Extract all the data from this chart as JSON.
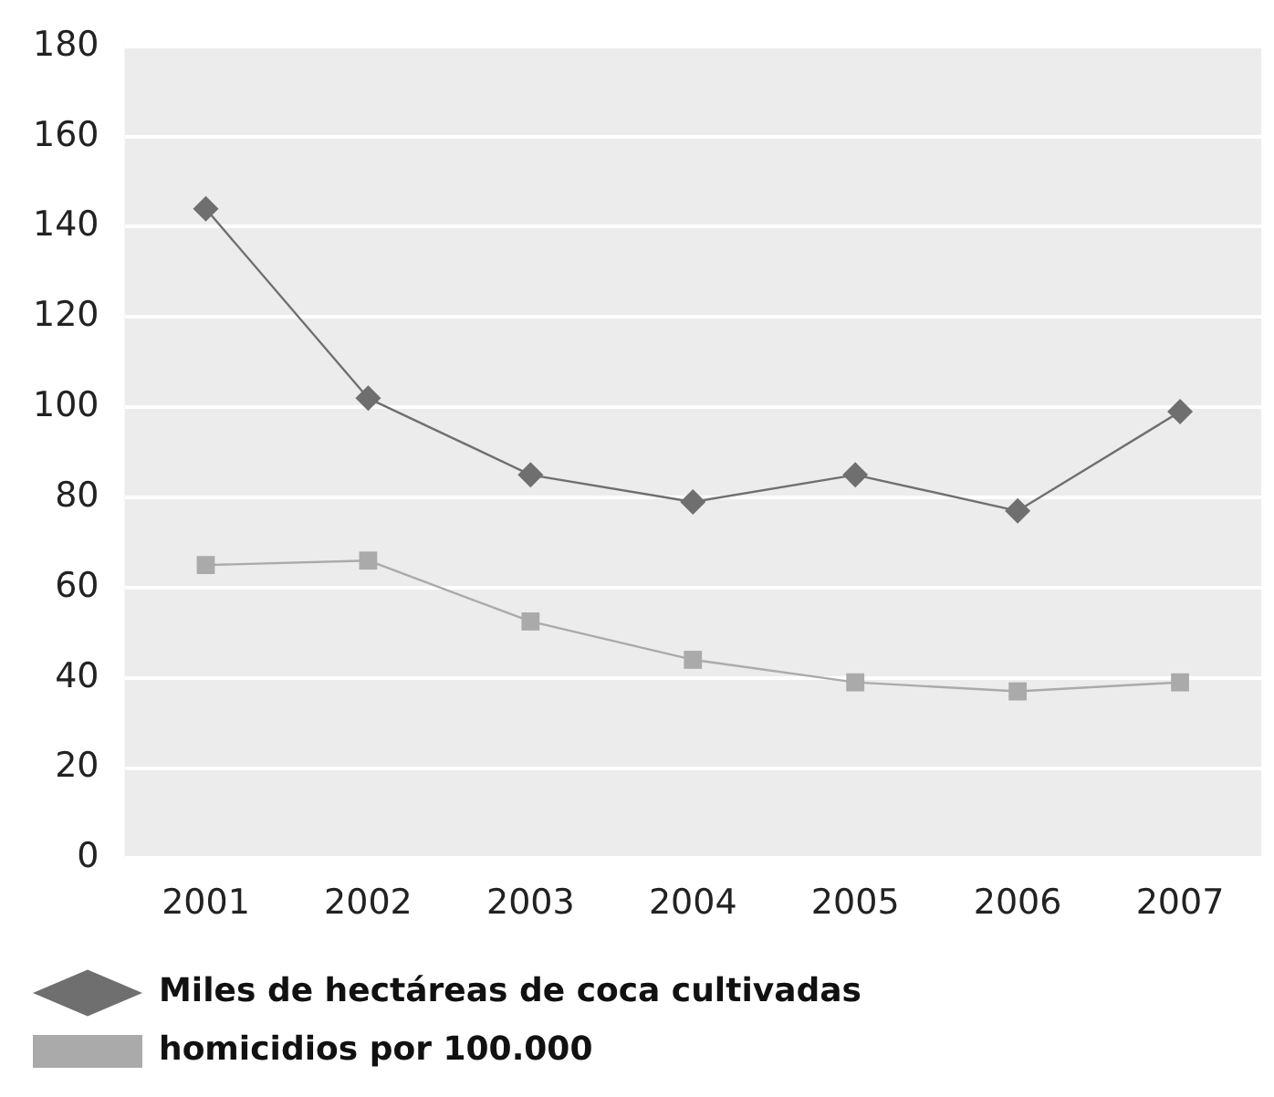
{
  "chart_data": {
    "type": "line",
    "categories": [
      "2001",
      "2002",
      "2003",
      "2004",
      "2005",
      "2006",
      "2007"
    ],
    "series": [
      {
        "name": "Miles de hectáreas de coca cultivadas",
        "color": "#6f6f6f",
        "marker": "diamond",
        "values": [
          144,
          102,
          85,
          79,
          85,
          77,
          99
        ]
      },
      {
        "name": "homicidios por 100.000",
        "color": "#aaaaaa",
        "marker": "square",
        "values": [
          65,
          66,
          52.5,
          44,
          39,
          37,
          39
        ]
      }
    ],
    "ylim": [
      0,
      180
    ],
    "yticks": [
      0,
      20,
      40,
      60,
      80,
      100,
      120,
      140,
      160,
      180
    ],
    "grid": "y",
    "legend": "bottom",
    "line_style": "solid"
  }
}
